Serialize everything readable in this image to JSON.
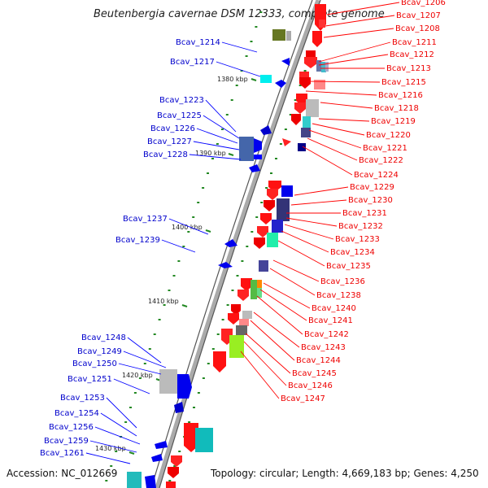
{
  "title": "Beutenbergia cavernae DSM 12333, complete genome",
  "footer": {
    "accession": "Accession: NC_012669",
    "topology": "Topology: circular; Length: 4,669,183 bp; Genes: 4,250"
  },
  "kbp_labels": [
    "1380 kbp",
    "1390 kbp",
    "1400 kbp",
    "1410 kbp",
    "1420 kbp",
    "1430 kbp"
  ],
  "right_labels": [
    "Bcav_1206",
    "Bcav_1207",
    "Bcav_1208",
    "Bcav_1211",
    "Bcav_1212",
    "Bcav_1213",
    "Bcav_1215",
    "Bcav_1216",
    "Bcav_1218",
    "Bcav_1219",
    "Bcav_1220",
    "Bcav_1221",
    "Bcav_1222",
    "Bcav_1224",
    "Bcav_1229",
    "Bcav_1230",
    "Bcav_1231",
    "Bcav_1232",
    "Bcav_1233",
    "Bcav_1234",
    "Bcav_1235",
    "Bcav_1236",
    "Bcav_1238",
    "Bcav_1240",
    "Bcav_1241",
    "Bcav_1242",
    "Bcav_1243",
    "Bcav_1244",
    "Bcav_1245",
    "Bcav_1246",
    "Bcav_1247"
  ],
  "left_labels": [
    "Bcav_1214",
    "Bcav_1217",
    "Bcav_1223",
    "Bcav_1225",
    "Bcav_1226",
    "Bcav_1227",
    "Bcav_1228",
    "Bcav_1237",
    "Bcav_1239",
    "Bcav_1248",
    "Bcav_1249",
    "Bcav_1250",
    "Bcav_1251",
    "Bcav_1253",
    "Bcav_1254",
    "Bcav_1256",
    "Bcav_1259",
    "Bcav_1261"
  ],
  "colors": {
    "forward_strand": "#ff0000",
    "reverse_strand": "#0000ff",
    "backbone": "#999999",
    "tick": "#228822"
  }
}
